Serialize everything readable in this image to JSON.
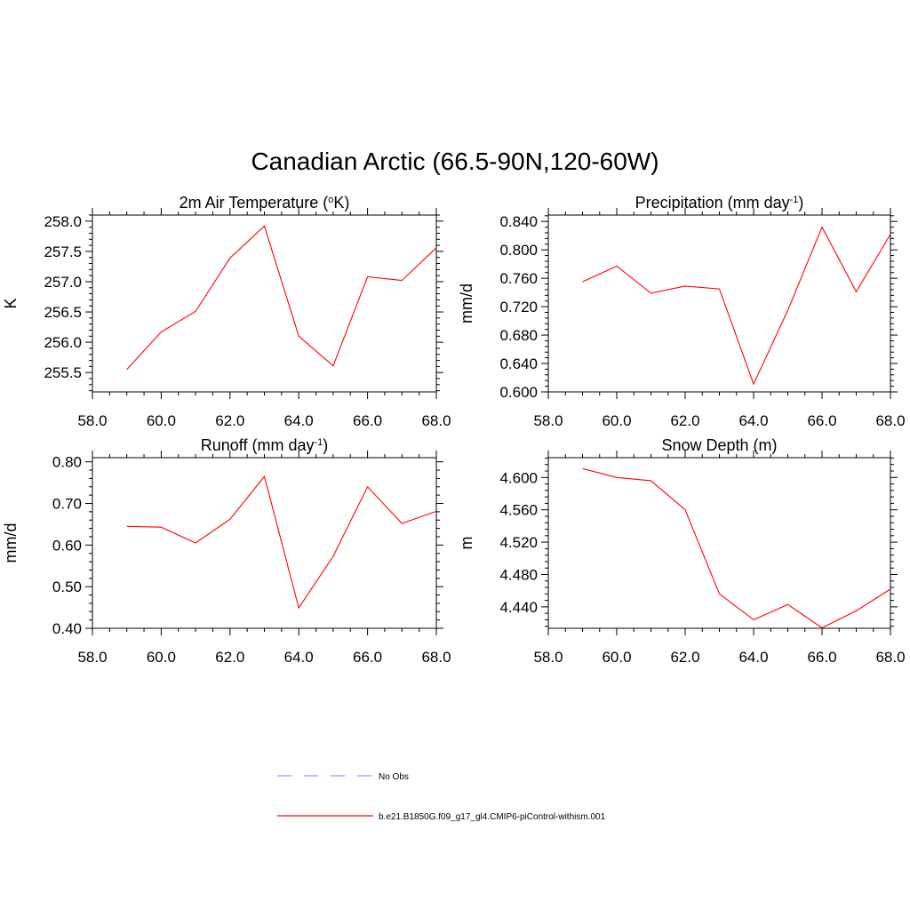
{
  "title": "Canadian Arctic (66.5-90N,120-60W)",
  "colors": {
    "model": "#ff0000",
    "obs": "#9999ff",
    "axis": "#000000"
  },
  "legend": [
    {
      "label": "No Obs",
      "style": "dashed",
      "color": "#9999ff"
    },
    {
      "label": "b.e21.B1850G.f09_g17_gl4.CMIP6-piControl-withism.001",
      "style": "solid",
      "color": "#ff0000"
    }
  ],
  "chart_data": [
    {
      "type": "line",
      "title": "2m Air Temperature (",
      "title_sup": "o",
      "title_post": "K)",
      "ylabel": "K",
      "xlim": [
        58,
        68
      ],
      "ylim": [
        255.18,
        258.1
      ],
      "x_ticks": [
        "58.0",
        "60.0",
        "62.0",
        "64.0",
        "66.0",
        "68.0"
      ],
      "y_ticks": [
        "255.5",
        "256.0",
        "256.5",
        "257.0",
        "257.5",
        "258.0"
      ],
      "series": [
        {
          "x": [
            59,
            60,
            61,
            62,
            63,
            64,
            65,
            66,
            67,
            68
          ],
          "y": [
            255.55,
            256.17,
            256.51,
            257.39,
            257.92,
            256.1,
            255.61,
            257.08,
            257.02,
            257.56
          ]
        }
      ]
    },
    {
      "type": "line",
      "title": "Precipitation (mm day",
      "title_sup": "-1",
      "title_post": ")",
      "ylabel": "mm/d",
      "xlim": [
        58,
        68
      ],
      "ylim": [
        0.6,
        0.849
      ],
      "x_ticks": [
        "58.0",
        "60.0",
        "62.0",
        "64.0",
        "66.0",
        "68.0"
      ],
      "y_ticks": [
        "0.600",
        "0.640",
        "0.680",
        "0.720",
        "0.760",
        "0.800",
        "0.840"
      ],
      "series": [
        {
          "x": [
            59,
            60,
            61,
            62,
            63,
            64,
            65,
            66,
            67,
            68
          ],
          "y": [
            0.755,
            0.777,
            0.739,
            0.749,
            0.745,
            0.611,
            0.715,
            0.832,
            0.741,
            0.822
          ]
        }
      ]
    },
    {
      "type": "line",
      "title": "Runoff (mm day",
      "title_sup": "-1",
      "title_post": ")",
      "ylabel": "mm/d",
      "xlim": [
        58,
        68
      ],
      "ylim": [
        0.4,
        0.81
      ],
      "x_ticks": [
        "58.0",
        "60.0",
        "62.0",
        "64.0",
        "66.0",
        "68.0"
      ],
      "y_ticks": [
        "0.40",
        "0.50",
        "0.60",
        "0.70",
        "0.80"
      ],
      "series": [
        {
          "x": [
            59,
            60,
            61,
            62,
            63,
            64,
            65,
            66,
            67,
            68
          ],
          "y": [
            0.645,
            0.643,
            0.605,
            0.662,
            0.765,
            0.449,
            0.573,
            0.74,
            0.652,
            0.681
          ]
        }
      ]
    },
    {
      "type": "line",
      "title": "Snow Depth (m)",
      "title_sup": "",
      "title_post": "",
      "ylabel": "m",
      "xlim": [
        58,
        68
      ],
      "ylim": [
        4.4135,
        4.6245
      ],
      "x_ticks": [
        "58.0",
        "60.0",
        "62.0",
        "64.0",
        "66.0",
        "68.0"
      ],
      "y_ticks": [
        "4.440",
        "4.480",
        "4.520",
        "4.560",
        "4.600"
      ],
      "series": [
        {
          "x": [
            59,
            60,
            61,
            62,
            63,
            64,
            65,
            66,
            67,
            68
          ],
          "y": [
            4.611,
            4.6,
            4.596,
            4.56,
            4.456,
            4.424,
            4.443,
            4.414,
            4.435,
            4.462
          ]
        }
      ]
    }
  ]
}
